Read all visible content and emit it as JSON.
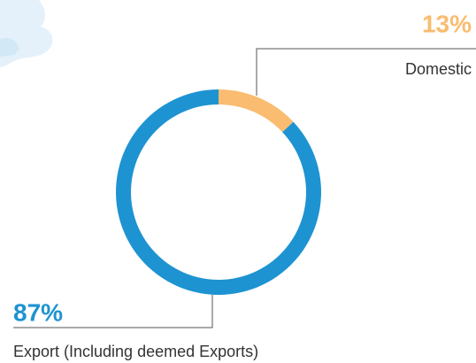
{
  "chart_data": {
    "type": "pie",
    "donut": true,
    "categories": [
      "Domestic",
      "Export (Including deemed Exports)"
    ],
    "values": [
      13,
      87
    ],
    "value_labels": [
      "13%",
      "87%"
    ],
    "colors": [
      "#f9bc70",
      "#1d93d2"
    ]
  }
}
